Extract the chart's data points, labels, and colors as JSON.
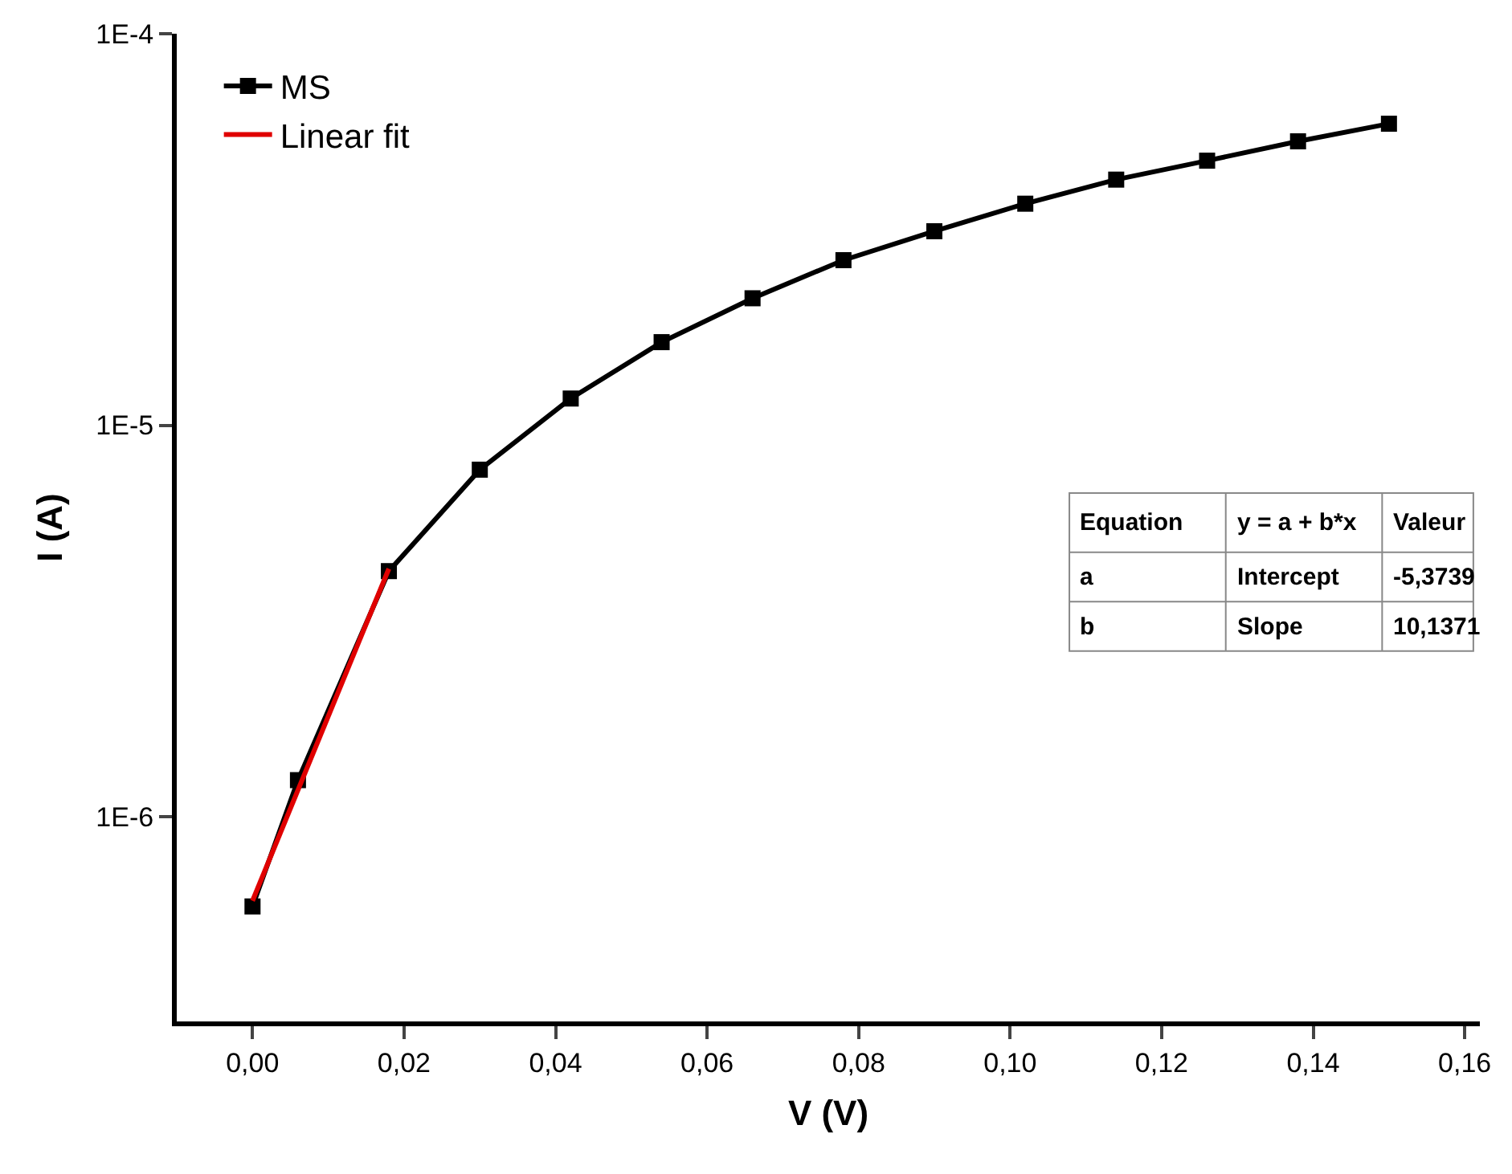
{
  "chart_data": {
    "type": "line",
    "xlabel": "V (V)",
    "ylabel": "I (A)",
    "log": "y",
    "grid": false,
    "legend": "top left",
    "xlim": [
      -0.01,
      0.162
    ],
    "ylim": [
      3e-07,
      0.0001
    ],
    "xticks": [
      {
        "value": 0,
        "label": "0,00"
      },
      {
        "value": 0.02,
        "label": "0,02"
      },
      {
        "value": 0.04,
        "label": "0,04"
      },
      {
        "value": 0.06,
        "label": "0,06"
      },
      {
        "value": 0.08,
        "label": "0,08"
      },
      {
        "value": 0.1,
        "label": "0,10"
      },
      {
        "value": 0.12,
        "label": "0,12"
      },
      {
        "value": 0.14,
        "label": "0,14"
      },
      {
        "value": 0.16,
        "label": "0,16"
      }
    ],
    "yticks": [
      {
        "value": 1e-06,
        "label": "1E-6"
      },
      {
        "value": 1e-05,
        "label": "1E-5"
      },
      {
        "value": 0.0001,
        "label": "1E-4"
      }
    ],
    "series": [
      {
        "name": "MS",
        "color": "#000000",
        "marker": "square",
        "x": [
          0,
          0.006,
          0.018,
          0.03,
          0.042,
          0.054,
          0.066,
          0.078,
          0.09,
          0.102,
          0.114,
          0.126,
          0.138,
          0.15
        ],
        "values": [
          5.9e-07,
          1.24e-06,
          4.24e-06,
          7.7e-06,
          1.17e-05,
          1.63e-05,
          2.11e-05,
          2.64e-05,
          3.13e-05,
          3.68e-05,
          4.24e-05,
          4.74e-05,
          5.31e-05,
          5.89e-05
        ]
      },
      {
        "name": "Linear fit",
        "color": "#e00000",
        "marker": "none",
        "x": [
          0,
          0.018
        ],
        "values": [
          6.1e-07,
          4.3e-06
        ]
      }
    ],
    "annotations": [
      "Equation",
      "y = a + b*x",
      "Valeur",
      "a",
      "Intercept",
      "-5,3739",
      "b",
      "Slope",
      "10,1371"
    ]
  }
}
